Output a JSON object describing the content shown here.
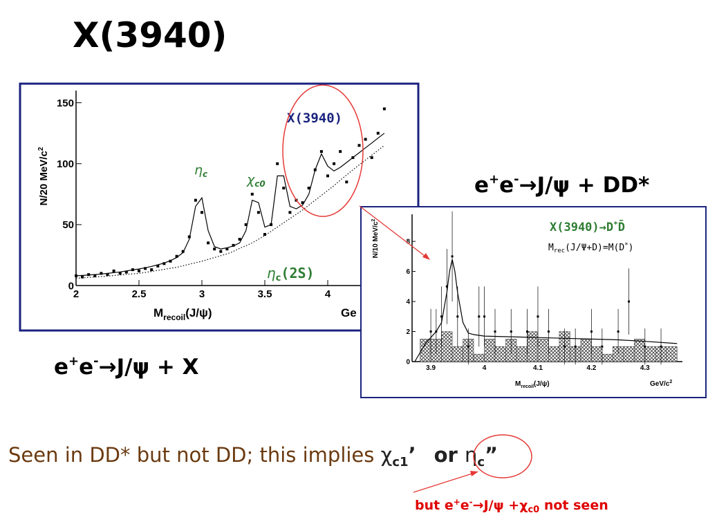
{
  "title": "X(3940)",
  "reaction_right": [
    "e",
    "+",
    "e",
    "-",
    "→J/ψ + DD*"
  ],
  "reaction_left": [
    "e",
    "+",
    "e",
    "-",
    "→J/ψ + X"
  ],
  "conclusion": [
    "Seen in DD* but not DD; this implies ",
    "χ",
    "c1",
    "’",
    "or ",
    "η",
    "c",
    "”"
  ],
  "note": [
    "but e",
    "+",
    "e",
    "-",
    "→J/ψ +χ",
    "c0",
    " not seen"
  ],
  "chart_data": [
    {
      "type": "scatter",
      "y_label": [
        "N/20 MeV/c",
        "2"
      ],
      "x_label": [
        "M",
        "recoil",
        "(J/ψ)"
      ],
      "x_unit": [
        "Ge"
      ],
      "annotations": {
        "x3940": "X(3940)",
        "etac": [
          "η",
          "c"
        ],
        "chic0": [
          "χ",
          "c0"
        ],
        "etac2s": [
          "η",
          "c",
          "(2S)"
        ]
      },
      "xlim": [
        2,
        4.5
      ],
      "ylim": [
        0,
        160
      ],
      "xticks": [
        2,
        2.5,
        3,
        3.5,
        4
      ],
      "yticks": [
        0,
        50,
        100,
        150
      ],
      "x": [
        2,
        2.05,
        2.1,
        2.15,
        2.2,
        2.25,
        2.3,
        2.35,
        2.4,
        2.45,
        2.5,
        2.55,
        2.6,
        2.65,
        2.7,
        2.75,
        2.8,
        2.85,
        2.9,
        2.95,
        3,
        3.05,
        3.1,
        3.15,
        3.2,
        3.25,
        3.3,
        3.35,
        3.4,
        3.45,
        3.5,
        3.55,
        3.6,
        3.65,
        3.7,
        3.75,
        3.8,
        3.85,
        3.9,
        3.95,
        4,
        4.05,
        4.1,
        4.15,
        4.2,
        4.25,
        4.3,
        4.35,
        4.4,
        4.45
      ],
      "series": [
        {
          "color": "#000000",
          "values": [
            8,
            7,
            9,
            8,
            10,
            9,
            12,
            10,
            11,
            13,
            12,
            14,
            13,
            16,
            18,
            20,
            24,
            28,
            40,
            70,
            60,
            35,
            30,
            28,
            30,
            33,
            38,
            50,
            75,
            60,
            42,
            50,
            100,
            80,
            60,
            70,
            68,
            80,
            95,
            110,
            90,
            100,
            110,
            85,
            105,
            115,
            120,
            105,
            125,
            145
          ]
        }
      ],
      "curves": [
        {
          "style": "solid",
          "x": [
            2,
            2.05,
            2.1,
            2.15,
            2.2,
            2.25,
            2.3,
            2.35,
            2.4,
            2.45,
            2.5,
            2.55,
            2.6,
            2.65,
            2.7,
            2.75,
            2.8,
            2.85,
            2.9,
            2.95,
            3,
            3.05,
            3.1,
            3.15,
            3.2,
            3.25,
            3.3,
            3.35,
            3.4,
            3.45,
            3.5,
            3.55,
            3.6,
            3.65,
            3.7,
            3.75,
            3.8,
            3.85,
            3.9,
            3.95,
            4,
            4.05,
            4.1,
            4.15,
            4.2,
            4.25,
            4.3,
            4.35,
            4.4,
            4.45
          ],
          "values": [
            8,
            8.3,
            8.7,
            9,
            9.5,
            10,
            10.6,
            11.2,
            12,
            12.8,
            13.6,
            14.6,
            15.7,
            17,
            18.5,
            20.5,
            23,
            27,
            38,
            65,
            72,
            45,
            32,
            30,
            31,
            32.5,
            35,
            45,
            70,
            68,
            48,
            50,
            90,
            90,
            65,
            63,
            66,
            75,
            95,
            108,
            98,
            94,
            97,
            101,
            105,
            109,
            113,
            117,
            121,
            125
          ]
        },
        {
          "style": "dotted",
          "x": [
            2,
            2.05,
            2.1,
            2.15,
            2.2,
            2.25,
            2.3,
            2.35,
            2.4,
            2.45,
            2.5,
            2.55,
            2.6,
            2.65,
            2.7,
            2.75,
            2.8,
            2.85,
            2.9,
            2.95,
            3,
            3.05,
            3.1,
            3.15,
            3.2,
            3.25,
            3.3,
            3.35,
            3.4,
            3.45,
            3.5,
            3.55,
            3.6,
            3.65,
            3.7,
            3.75,
            3.8,
            3.85,
            3.9,
            3.95,
            4,
            4.05,
            4.1,
            4.15,
            4.2,
            4.25,
            4.3,
            4.35,
            4.4,
            4.45
          ],
          "values": [
            6,
            6.3,
            6.7,
            7,
            7.4,
            7.8,
            8.2,
            8.7,
            9.2,
            9.6,
            10,
            10.8,
            11.6,
            12.5,
            13.3,
            14.2,
            15,
            16.2,
            17.5,
            18.7,
            20,
            21.5,
            23,
            24.5,
            26,
            28,
            30.5,
            32.7,
            35,
            38,
            41,
            44.5,
            48,
            51.5,
            55,
            58.5,
            62,
            66,
            70,
            74,
            78,
            82,
            86.5,
            90.7,
            95,
            99,
            103,
            107,
            111,
            115
          ]
        }
      ]
    },
    {
      "type": "scatter",
      "y_label": [
        "N/10 MeV/c",
        "2"
      ],
      "x_label": [
        "M",
        "recoil",
        "(J/ψ)"
      ],
      "x_unit": [
        "GeV/c",
        "2"
      ],
      "annotations": {
        "decay": [
          "X(3940)→D",
          "*",
          "D̄"
        ],
        "constraint": [
          "M",
          "rec",
          "(J/Ψ+D)=M(D",
          "*",
          ")"
        ]
      },
      "xlim": [
        3.865,
        4.37
      ],
      "ylim": [
        0,
        9.8
      ],
      "xticks": [
        3.9,
        4,
        4.1,
        4.2,
        4.3
      ],
      "yticks": [
        0,
        2,
        4,
        6,
        8
      ],
      "x": [
        3.9,
        3.91,
        3.92,
        3.93,
        3.94,
        3.95,
        3.97,
        3.99,
        4,
        4.02,
        4.05,
        4.08,
        4.1,
        4.12,
        4.15,
        4.17,
        4.2,
        4.22,
        4.25,
        4.27,
        4.3,
        4.33
      ],
      "series": [
        {
          "color": "#000000",
          "values": [
            2,
            2,
            3,
            5,
            7,
            3,
            1,
            3,
            3,
            2,
            2,
            2,
            3,
            2,
            1,
            1,
            2,
            1,
            2,
            4,
            1,
            1
          ],
          "errors": [
            1.5,
            1.5,
            2,
            2.5,
            3,
            2,
            1.2,
            2,
            2,
            1.5,
            1.5,
            1.5,
            2,
            1.5,
            1.2,
            1.2,
            1.5,
            1.2,
            1.5,
            2.2,
            1.2,
            1.2
          ]
        }
      ],
      "curves": [
        {
          "style": "solid",
          "x": [
            3.87,
            3.88,
            3.89,
            3.9,
            3.91,
            3.92,
            3.93,
            3.935,
            3.94,
            3.945,
            3.95,
            3.96,
            3.97,
            3.98,
            4,
            4.05,
            4.1,
            4.15,
            4.2,
            4.25,
            4.3,
            4.36
          ],
          "values": [
            0,
            0.6,
            1.2,
            1.6,
            2,
            2.6,
            4.6,
            6,
            6.8,
            6,
            4.6,
            2.6,
            1.9,
            1.8,
            1.7,
            1.65,
            1.6,
            1.55,
            1.5,
            1.45,
            1.35,
            1.2
          ]
        }
      ],
      "histogram": {
        "bins": [
          3.88,
          3.9,
          3.92,
          3.94,
          3.96,
          3.98,
          4,
          4.02,
          4.04,
          4.06,
          4.08,
          4.1,
          4.12,
          4.14,
          4.16,
          4.18,
          4.2,
          4.22,
          4.24,
          4.26,
          4.28,
          4.3,
          4.32,
          4.34,
          4.36
        ],
        "counts": [
          1.5,
          1.5,
          2,
          1,
          1.5,
          0.5,
          1.5,
          1,
          1.5,
          1,
          2,
          1.5,
          1,
          2,
          1,
          1.5,
          1,
          0.5,
          1,
          1,
          1.5,
          1,
          1,
          1
        ]
      }
    }
  ]
}
